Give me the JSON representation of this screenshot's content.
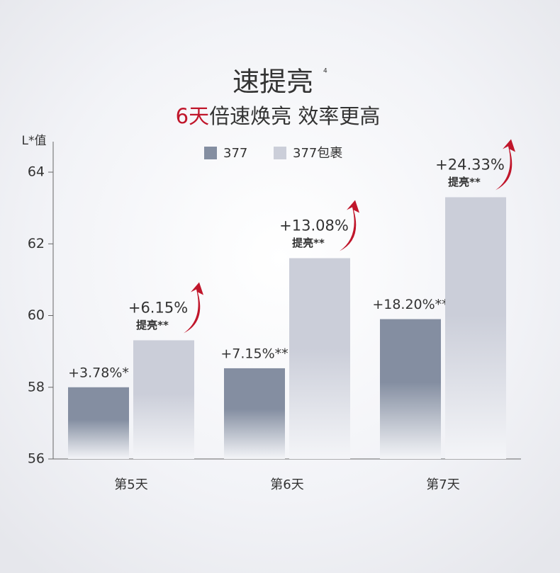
{
  "chart_data": {
    "type": "bar",
    "title": "速提亮",
    "title_note": "4",
    "subtitle_highlight": "6天",
    "subtitle": "倍速焕亮 效率更高",
    "y_label": "L*值",
    "categories": [
      "第5天",
      "第6天",
      "第7天"
    ],
    "series": [
      {
        "name": "377",
        "color": "#848ea1",
        "values": [
          58.0,
          58.53,
          59.9
        ],
        "change_labels": [
          "+3.78%*",
          "+7.15%**",
          "+18.20%**"
        ]
      },
      {
        "name": "377包裹",
        "color": "#cbced9",
        "values": [
          59.31,
          61.6,
          63.3
        ],
        "change_labels": [
          "+6.15%",
          "+13.08%",
          "+24.33%"
        ],
        "notes": [
          "提亮**",
          "提亮**",
          "提亮**"
        ]
      }
    ],
    "ylim": [
      56,
      64.85
    ],
    "yticks": [
      56,
      58,
      60,
      62,
      64
    ],
    "highlight_color": "#c0162b"
  }
}
